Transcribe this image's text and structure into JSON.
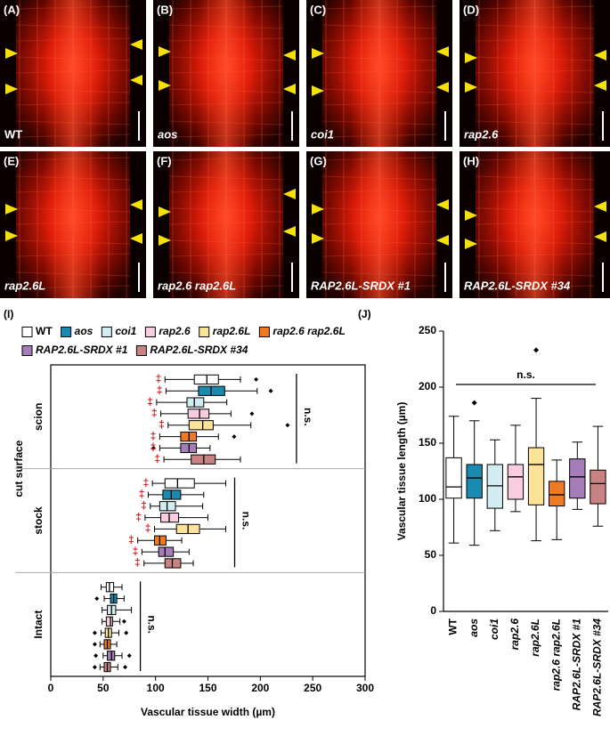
{
  "panels": [
    {
      "letter": "(A)",
      "label": "WT",
      "italic": false
    },
    {
      "letter": "(B)",
      "label": "aos",
      "italic": true
    },
    {
      "letter": "(C)",
      "label": "coi1",
      "italic": true
    },
    {
      "letter": "(D)",
      "label": "rap2.6",
      "italic": true
    },
    {
      "letter": "(E)",
      "label": "rap2.6L",
      "italic": true
    },
    {
      "letter": "(F)",
      "label": "rap2.6 rap2.6L",
      "italic": true
    },
    {
      "letter": "(G)",
      "label": "RAP2.6L-SRDX #1",
      "italic": true
    },
    {
      "letter": "(H)",
      "label": "RAP2.6L-SRDX #34",
      "italic": true
    }
  ],
  "chart_data": [
    {
      "type": "boxplot",
      "orientation": "horizontal",
      "panel": "(I)",
      "xlabel": "Vascular tissue width (µm)",
      "group_axis_label": "cut surface",
      "xlim": [
        0,
        300
      ],
      "xticks": [
        0,
        50,
        100,
        150,
        200,
        250,
        300
      ],
      "series": [
        {
          "name": "WT",
          "color": "#ffffff",
          "italic": false
        },
        {
          "name": "aos",
          "color": "#1a8ab0",
          "italic": true
        },
        {
          "name": "coi1",
          "color": "#d3ecef",
          "italic": true
        },
        {
          "name": "rap2.6",
          "color": "#f8cde0",
          "italic": true
        },
        {
          "name": "rap2.6L",
          "color": "#fbe39a",
          "italic": true
        },
        {
          "name": "rap2.6 rap2.6L",
          "color": "#ef7a22",
          "italic": true
        },
        {
          "name": "RAP2.6L-SRDX #1",
          "color": "#a67db8",
          "italic": true
        },
        {
          "name": "RAP2.6L-SRDX #34",
          "color": "#c98282",
          "italic": true
        }
      ],
      "groups": [
        {
          "name": "scion",
          "annotation": "n.s.",
          "significance": "‡",
          "boxes": [
            {
              "stats": [
                109,
                137,
                149,
                160,
                181
              ],
              "outliers": [
                196
              ]
            },
            {
              "stats": [
                110,
                141,
                153,
                166,
                197
              ],
              "outliers": [
                210
              ]
            },
            {
              "stats": [
                101,
                130,
                137,
                146,
                168
              ],
              "outliers": []
            },
            {
              "stats": [
                105,
                131,
                142,
                151,
                172
              ],
              "outliers": [
                192
              ]
            },
            {
              "stats": [
                112,
                132,
                145,
                155,
                191
              ],
              "outliers": [
                226
              ]
            },
            {
              "stats": [
                104,
                124,
                132,
                139,
                160
              ],
              "outliers": [
                175
              ]
            },
            {
              "stats": [
                104,
                124,
                132,
                139,
                152
              ],
              "outliers": [
                98
              ]
            },
            {
              "stats": [
                108,
                134,
                146,
                157,
                181
              ],
              "outliers": []
            }
          ]
        },
        {
          "name": "stock",
          "annotation": "n.s.",
          "significance": "‡",
          "boxes": [
            {
              "stats": [
                97,
                109,
                121,
                137,
                167
              ],
              "outliers": []
            },
            {
              "stats": [
                93,
                107,
                115,
                124,
                146
              ],
              "outliers": []
            },
            {
              "stats": [
                95,
                104,
                111,
                119,
                145
              ],
              "outliers": []
            },
            {
              "stats": [
                90,
                105,
                113,
                122,
                150
              ],
              "outliers": []
            },
            {
              "stats": [
                99,
                120,
                131,
                142,
                167
              ],
              "outliers": []
            },
            {
              "stats": [
                83,
                99,
                104,
                110,
                125
              ],
              "outliers": []
            },
            {
              "stats": [
                87,
                103,
                109,
                117,
                132
              ],
              "outliers": []
            },
            {
              "stats": [
                89,
                109,
                116,
                124,
                136
              ],
              "outliers": []
            }
          ]
        },
        {
          "name": "Intact",
          "annotation": "n.s.",
          "boxes": [
            {
              "stats": [
                48,
                53,
                56,
                60,
                68
              ],
              "outliers": []
            },
            {
              "stats": [
                51,
                57,
                60,
                63,
                70
              ],
              "outliers": [
                44
              ]
            },
            {
              "stats": [
                49,
                54,
                58,
                62,
                77
              ],
              "outliers": []
            },
            {
              "stats": [
                49,
                53,
                57,
                59,
                66
              ],
              "outliers": [
                70
              ]
            },
            {
              "stats": [
                48,
                52,
                55,
                58,
                65
              ],
              "outliers": [
                42,
                72
              ]
            },
            {
              "stats": [
                47,
                51,
                54,
                57,
                63
              ],
              "outliers": [
                42
              ]
            },
            {
              "stats": [
                50,
                54,
                58,
                61,
                68
              ],
              "outliers": [
                43,
                75
              ]
            },
            {
              "stats": [
                47,
                51,
                54,
                57,
                64
              ],
              "outliers": [
                42,
                71
              ]
            }
          ]
        }
      ]
    },
    {
      "type": "boxplot",
      "orientation": "vertical",
      "panel": "(J)",
      "ylabel": "Vascular tissue length (µm)",
      "annotation": "n.s.",
      "ylim": [
        0,
        250
      ],
      "yticks": [
        0,
        50,
        100,
        150,
        200,
        250
      ],
      "categories": [
        "WT",
        "aos",
        "coi1",
        "rap2.6",
        "rap2.6L",
        "rap2.6 rap2.6L",
        "RAP2.6L-SRDX #1",
        "RAP2.6L-SRDX #34"
      ],
      "italic": [
        false,
        true,
        true,
        true,
        true,
        true,
        true,
        true
      ],
      "colors": [
        "#ffffff",
        "#1a8ab0",
        "#d3ecef",
        "#f8cde0",
        "#fbe39a",
        "#ef7a22",
        "#a67db8",
        "#c98282"
      ],
      "boxes": [
        {
          "stats": [
            61,
            101,
            111,
            137,
            174
          ],
          "outliers": []
        },
        {
          "stats": [
            59,
            101,
            119,
            131,
            170
          ],
          "outliers": [
            186
          ]
        },
        {
          "stats": [
            72,
            92,
            112,
            131,
            153
          ],
          "outliers": []
        },
        {
          "stats": [
            89,
            100,
            120,
            131,
            166
          ],
          "outliers": []
        },
        {
          "stats": [
            63,
            95,
            131,
            146,
            190
          ],
          "outliers": [
            233
          ]
        },
        {
          "stats": [
            64,
            94,
            104,
            116,
            135
          ],
          "outliers": []
        },
        {
          "stats": [
            91,
            101,
            120,
            136,
            151
          ],
          "outliers": []
        },
        {
          "stats": [
            76,
            96,
            114,
            126,
            165
          ],
          "outliers": []
        }
      ]
    }
  ]
}
